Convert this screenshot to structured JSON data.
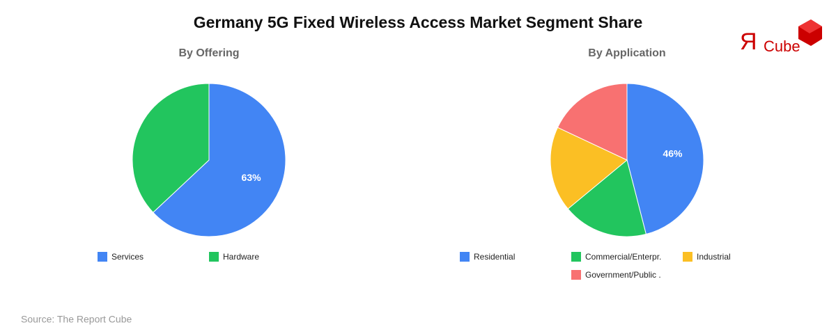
{
  "title": "Germany 5G Fixed Wireless Access Market Segment Share",
  "logo": {
    "mark": "Я",
    "text": "Cube"
  },
  "source": "Source: The Report Cube",
  "chart_data": [
    {
      "type": "pie",
      "title": "By Offering",
      "categories": [
        "Services",
        "Hardware"
      ],
      "values": [
        63,
        37
      ],
      "value_labels": [
        "63%",
        null
      ],
      "colors": [
        "#4285f4",
        "#22c55e"
      ]
    },
    {
      "type": "pie",
      "title": "By Application",
      "categories": [
        "Residential",
        "Commercial/Enterpr.",
        "Industrial",
        "Government/Public ."
      ],
      "values": [
        46,
        18,
        18,
        18
      ],
      "value_labels": [
        "46%",
        null,
        null,
        null
      ],
      "colors": [
        "#4285f4",
        "#22c55e",
        "#fbbf24",
        "#f87171"
      ]
    }
  ]
}
